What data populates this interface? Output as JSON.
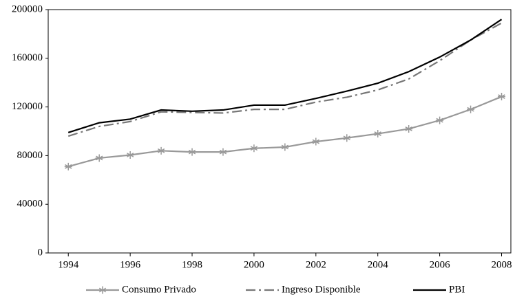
{
  "chart_data": {
    "type": "line",
    "x": [
      1994,
      1995,
      1996,
      1997,
      1998,
      1999,
      2000,
      2001,
      2002,
      2003,
      2004,
      2005,
      2006,
      2007,
      2008
    ],
    "series": [
      {
        "name": "Consumo Privado",
        "color": "#999999",
        "linestyle": "solid",
        "marker": "asterisk",
        "values": [
          71000,
          78000,
          80500,
          84000,
          83000,
          83000,
          86000,
          87000,
          91500,
          94500,
          98000,
          102000,
          109000,
          118000,
          128500
        ]
      },
      {
        "name": "Ingreso Disponible",
        "color": "#777777",
        "linestyle": "dash-dot",
        "marker": "none",
        "values": [
          96000,
          104000,
          108000,
          116000,
          115500,
          115000,
          118000,
          118000,
          124000,
          128000,
          134000,
          143000,
          158000,
          175000,
          189000
        ]
      },
      {
        "name": "PBI",
        "color": "#000000",
        "linestyle": "solid",
        "marker": "none",
        "values": [
          99000,
          107000,
          110000,
          117500,
          116500,
          117500,
          121500,
          121500,
          127000,
          133000,
          139500,
          149000,
          161000,
          175000,
          192000
        ]
      }
    ],
    "xlim": [
      1993.35,
      2008.3
    ],
    "xticks": [
      1994,
      1996,
      1998,
      2000,
      2002,
      2004,
      2006,
      2008
    ],
    "ylim": [
      0,
      200000
    ],
    "yticks": [
      0,
      40000,
      80000,
      120000,
      160000,
      200000
    ],
    "grid": false,
    "legend": "bottom"
  }
}
